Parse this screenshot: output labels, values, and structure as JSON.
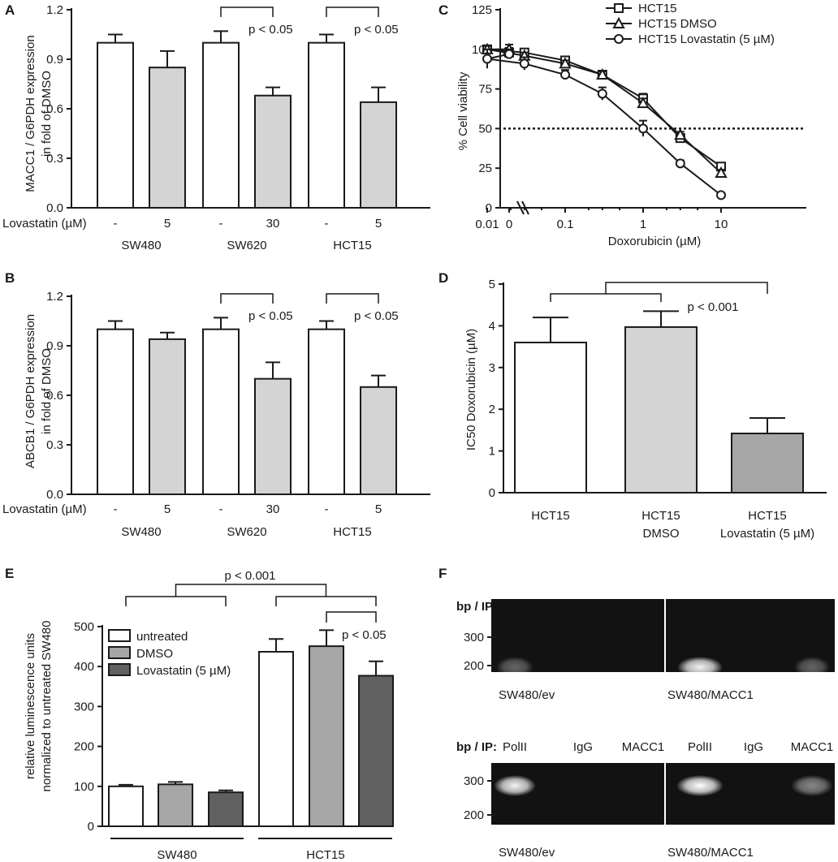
{
  "colors": {
    "white": "#ffffff",
    "light_gray": "#d4d4d4",
    "mid_gray": "#a6a6a6",
    "dark_gray": "#606060",
    "gel_bg": "#121212",
    "band": "#ffffff"
  },
  "chart_data": [
    {
      "panel": "A",
      "type": "bar",
      "ylabel": [
        "MACC1 / G6PDH expression",
        "in fold of DMSO"
      ],
      "ylim": [
        0,
        1.2
      ],
      "yticks": [
        "0.0",
        "0.3",
        "0.6",
        "0.9",
        "1.2"
      ],
      "treatment_label": "Lovastatin (µM)",
      "categories": [
        "-",
        "5",
        "-",
        "30",
        "-",
        "5"
      ],
      "values": [
        1.0,
        0.85,
        1.0,
        0.68,
        1.0,
        0.64
      ],
      "errors": [
        0.05,
        0.1,
        0.07,
        0.05,
        0.05,
        0.09
      ],
      "colors": [
        "white",
        "light_gray",
        "white",
        "light_gray",
        "white",
        "light_gray"
      ],
      "groups": [
        "SW480",
        "SW620",
        "HCT15"
      ],
      "annotations": [
        {
          "text": "p < 0.05",
          "from": 2,
          "to": 3
        },
        {
          "text": "p < 0.05",
          "from": 4,
          "to": 5
        }
      ]
    },
    {
      "panel": "B",
      "type": "bar",
      "ylabel": [
        "ABCB1 / G6PDH expression",
        "in fold of DMSO"
      ],
      "ylim": [
        0,
        1.2
      ],
      "yticks": [
        "0.0",
        "0.3",
        "0.6",
        "0.9",
        "1.2"
      ],
      "treatment_label": "Lovastatin (µM)",
      "categories": [
        "-",
        "5",
        "-",
        "30",
        "-",
        "5"
      ],
      "values": [
        1.0,
        0.94,
        1.0,
        0.7,
        1.0,
        0.65
      ],
      "errors": [
        0.05,
        0.04,
        0.07,
        0.1,
        0.05,
        0.07
      ],
      "colors": [
        "white",
        "light_gray",
        "white",
        "light_gray",
        "white",
        "light_gray"
      ],
      "groups": [
        "SW480",
        "SW620",
        "HCT15"
      ],
      "annotations": [
        {
          "text": "p < 0.05",
          "from": 2,
          "to": 3
        },
        {
          "text": "p < 0.05",
          "from": 4,
          "to": 5
        }
      ]
    },
    {
      "panel": "C",
      "type": "line",
      "xlabel": "Doxorubicin (µM)",
      "ylabel": "% Cell viability",
      "xticks": [
        "0",
        "0.01",
        "0.1",
        "1",
        "10"
      ],
      "ylim": [
        0,
        125
      ],
      "yticks": [
        "0",
        "25",
        "50",
        "75",
        "100",
        "125"
      ],
      "threshold": 50,
      "x": [
        0,
        0.01,
        0.03,
        0.1,
        0.3,
        1,
        3,
        10
      ],
      "series": [
        {
          "name": "HCT15",
          "marker": "square",
          "values": [
            98,
            100,
            98,
            93,
            84,
            69,
            44,
            26
          ],
          "errors": [
            3,
            2,
            2,
            2,
            2,
            3,
            2,
            2
          ]
        },
        {
          "name": "HCT15 DMSO",
          "marker": "triangle",
          "values": [
            100,
            100,
            96,
            91,
            84,
            66,
            46,
            22
          ],
          "errors": [
            3,
            2,
            2,
            2,
            2,
            3,
            2,
            2
          ]
        },
        {
          "name": "HCT15 Lovastatin (5 µM)",
          "marker": "circle",
          "values": [
            97,
            94,
            91,
            84,
            72,
            50,
            28,
            8
          ],
          "errors": [
            3,
            6,
            4,
            3,
            4,
            5,
            2,
            1
          ]
        }
      ]
    },
    {
      "panel": "D",
      "type": "bar",
      "ylabel": "IC50 Doxorubicin (µM)",
      "ylim": [
        0,
        5
      ],
      "yticks": [
        "0",
        "1",
        "2",
        "3",
        "4",
        "5"
      ],
      "categories": [
        [
          "HCT15"
        ],
        [
          "HCT15",
          "DMSO"
        ],
        [
          "HCT15",
          "Lovastatin (5 µM)"
        ]
      ],
      "values": [
        3.6,
        3.97,
        1.42
      ],
      "errors": [
        0.6,
        0.38,
        0.37
      ],
      "colors": [
        "white",
        "light_gray",
        "mid_gray"
      ],
      "annotation": "p < 0.001"
    },
    {
      "panel": "E",
      "type": "bar",
      "ylabel": [
        "relative luminescence units",
        "normalized to untreated SW480"
      ],
      "ylim": [
        0,
        500
      ],
      "yticks": [
        "0",
        "100",
        "200",
        "300",
        "400",
        "500"
      ],
      "legend": [
        "untreated",
        "DMSO",
        "Lovastatin (5 µM)"
      ],
      "groups": [
        "SW480",
        "HCT15"
      ],
      "values": [
        100,
        105,
        85,
        437,
        451,
        377
      ],
      "errors": [
        4,
        6,
        5,
        32,
        40,
        36
      ],
      "colors": [
        "white",
        "mid_gray",
        "dark_gray",
        "white",
        "mid_gray",
        "dark_gray"
      ],
      "annotations": [
        "p < 0.001",
        "p < 0.05"
      ]
    },
    {
      "panel": "F",
      "type": "gel",
      "header_label": "bp / IP:",
      "lanes": [
        "PolII",
        "IgG",
        "MACC1"
      ],
      "rows": [
        {
          "markers": [
            "300",
            "200"
          ],
          "left_sample": "SW480/ev",
          "right_sample": "SW480/MACC1"
        },
        {
          "markers": [
            "300",
            "200"
          ],
          "left_sample": "SW480/ev",
          "right_sample": "SW480/MACC1"
        }
      ]
    }
  ]
}
